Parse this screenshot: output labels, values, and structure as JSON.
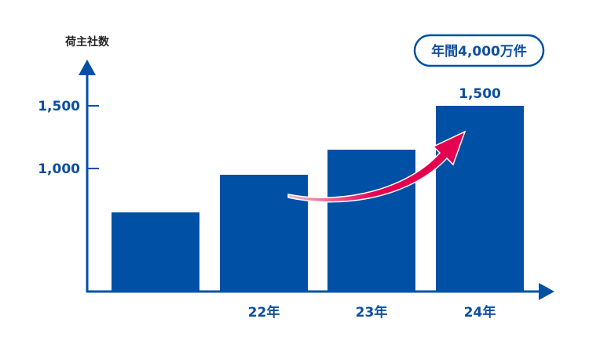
{
  "chart_data": {
    "type": "bar",
    "ylabel": "荷主社数",
    "categories": [
      "",
      "22年",
      "23年",
      "24年"
    ],
    "values": [
      650,
      950,
      1150,
      1500
    ],
    "yticks": [
      1000,
      1500
    ],
    "ytick_labels": [
      "1,000",
      "1,500"
    ],
    "ylim": [
      0,
      1500
    ],
    "data_labels": [
      "",
      "",
      "",
      "1,500"
    ],
    "annotation": "年間4,000万件",
    "grid": false,
    "colors": {
      "bar": "#0050a5",
      "axis": "#0050a5",
      "arrow": "#e5004f",
      "text": "#0d4fa0"
    }
  }
}
